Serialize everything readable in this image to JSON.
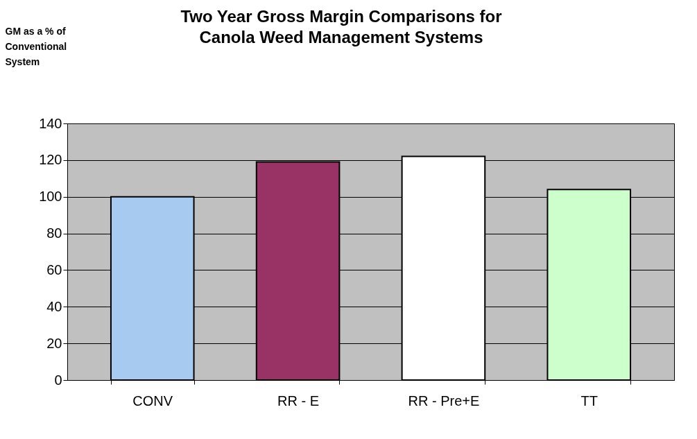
{
  "chart_data": {
    "type": "bar",
    "title": "Two Year Gross Margin Comparisons for\nCanola Weed Management Systems",
    "ylabel": "GM as a % of\nConventional\nSystem",
    "categories": [
      "CONV",
      "RR - E",
      "RR - Pre+E",
      "TT"
    ],
    "values": [
      100,
      119,
      122,
      104
    ],
    "colors": [
      "#a6caf0",
      "#993366",
      "#ffffff",
      "#ccffcc"
    ],
    "ylim": [
      0,
      140
    ],
    "yticks": [
      0,
      20,
      40,
      60,
      80,
      100,
      120,
      140
    ],
    "grid": "y"
  }
}
